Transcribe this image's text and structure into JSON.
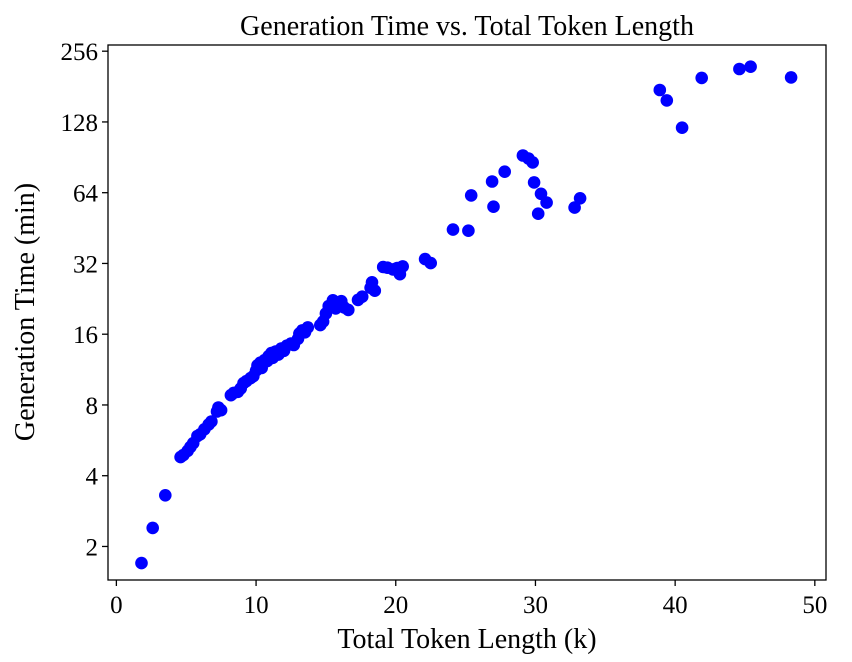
{
  "chart_data": {
    "type": "scatter",
    "title": "Generation Time vs. Total Token Length",
    "xlabel": "Total Token Length (k)",
    "ylabel": "Generation Time (min)",
    "xlim": [
      -0.6,
      50.8
    ],
    "ylim": [
      1.44,
      272
    ],
    "yscale": "log2",
    "xticks": [
      0,
      10,
      20,
      30,
      40,
      50
    ],
    "xtick_labels": [
      "0",
      "10",
      "20",
      "30",
      "40",
      "50"
    ],
    "yticks": [
      2,
      4,
      8,
      16,
      32,
      64,
      128,
      256
    ],
    "ytick_labels": [
      "2",
      "4",
      "8",
      "16",
      "32",
      "64",
      "128",
      "256"
    ],
    "grid": false,
    "legend": false,
    "marker_color": "#0000ff",
    "series": [
      {
        "points": [
          [
            1.8,
            1.7
          ],
          [
            2.6,
            2.4
          ],
          [
            3.5,
            3.3
          ],
          [
            4.6,
            4.8
          ],
          [
            4.8,
            4.9
          ],
          [
            5.1,
            5.1
          ],
          [
            5.3,
            5.3
          ],
          [
            5.5,
            5.5
          ],
          [
            5.8,
            5.9
          ],
          [
            6.0,
            6.0
          ],
          [
            6.3,
            6.3
          ],
          [
            6.6,
            6.6
          ],
          [
            6.8,
            6.8
          ],
          [
            7.2,
            7.5
          ],
          [
            7.3,
            7.8
          ],
          [
            7.5,
            7.6
          ],
          [
            8.2,
            8.8
          ],
          [
            8.4,
            9.0
          ],
          [
            8.7,
            9.1
          ],
          [
            8.9,
            9.4
          ],
          [
            9.1,
            9.9
          ],
          [
            9.3,
            10.1
          ],
          [
            9.6,
            10.4
          ],
          [
            9.8,
            10.6
          ],
          [
            10.0,
            11.2
          ],
          [
            10.1,
            11.8
          ],
          [
            10.3,
            12.1
          ],
          [
            10.4,
            11.5
          ],
          [
            10.6,
            12.4
          ],
          [
            10.8,
            12.3
          ],
          [
            10.9,
            12.9
          ],
          [
            11.1,
            13.3
          ],
          [
            11.2,
            12.7
          ],
          [
            11.4,
            13.5
          ],
          [
            11.6,
            13.1
          ],
          [
            11.8,
            13.9
          ],
          [
            12.0,
            13.6
          ],
          [
            12.2,
            14.3
          ],
          [
            12.5,
            14.6
          ],
          [
            12.7,
            14.4
          ],
          [
            13.0,
            15.3
          ],
          [
            13.1,
            16.1
          ],
          [
            13.3,
            16.6
          ],
          [
            13.5,
            16.3
          ],
          [
            13.7,
            17.1
          ],
          [
            14.6,
            17.5
          ],
          [
            14.8,
            18.1
          ],
          [
            15.0,
            19.6
          ],
          [
            15.2,
            21.1
          ],
          [
            15.5,
            22.3
          ],
          [
            15.7,
            20.6
          ],
          [
            15.9,
            21.3
          ],
          [
            16.1,
            22.1
          ],
          [
            16.3,
            20.8
          ],
          [
            16.6,
            20.3
          ],
          [
            17.3,
            22.4
          ],
          [
            17.6,
            23.1
          ],
          [
            18.2,
            25.2
          ],
          [
            18.3,
            26.6
          ],
          [
            18.5,
            24.5
          ],
          [
            19.1,
            30.9
          ],
          [
            19.4,
            30.7
          ],
          [
            19.8,
            30.2
          ],
          [
            20.1,
            30.6
          ],
          [
            20.3,
            28.8
          ],
          [
            20.5,
            31.1
          ],
          [
            22.1,
            33.4
          ],
          [
            22.5,
            32.1
          ],
          [
            24.1,
            44.6
          ],
          [
            25.2,
            44.1
          ],
          [
            25.4,
            62.3
          ],
          [
            26.9,
            71.4
          ],
          [
            27.0,
            55.8
          ],
          [
            27.8,
            78.6
          ],
          [
            29.1,
            92.1
          ],
          [
            29.5,
            89.5
          ],
          [
            29.8,
            86.1
          ],
          [
            29.9,
            70.8
          ],
          [
            30.2,
            52.1
          ],
          [
            30.4,
            63.3
          ],
          [
            30.8,
            58.1
          ],
          [
            32.8,
            55.3
          ],
          [
            33.2,
            60.6
          ],
          [
            38.9,
            175
          ],
          [
            39.4,
            158
          ],
          [
            40.5,
            121
          ],
          [
            41.9,
            197
          ],
          [
            44.6,
            215
          ],
          [
            45.4,
            220
          ],
          [
            48.3,
            198
          ]
        ]
      }
    ]
  }
}
